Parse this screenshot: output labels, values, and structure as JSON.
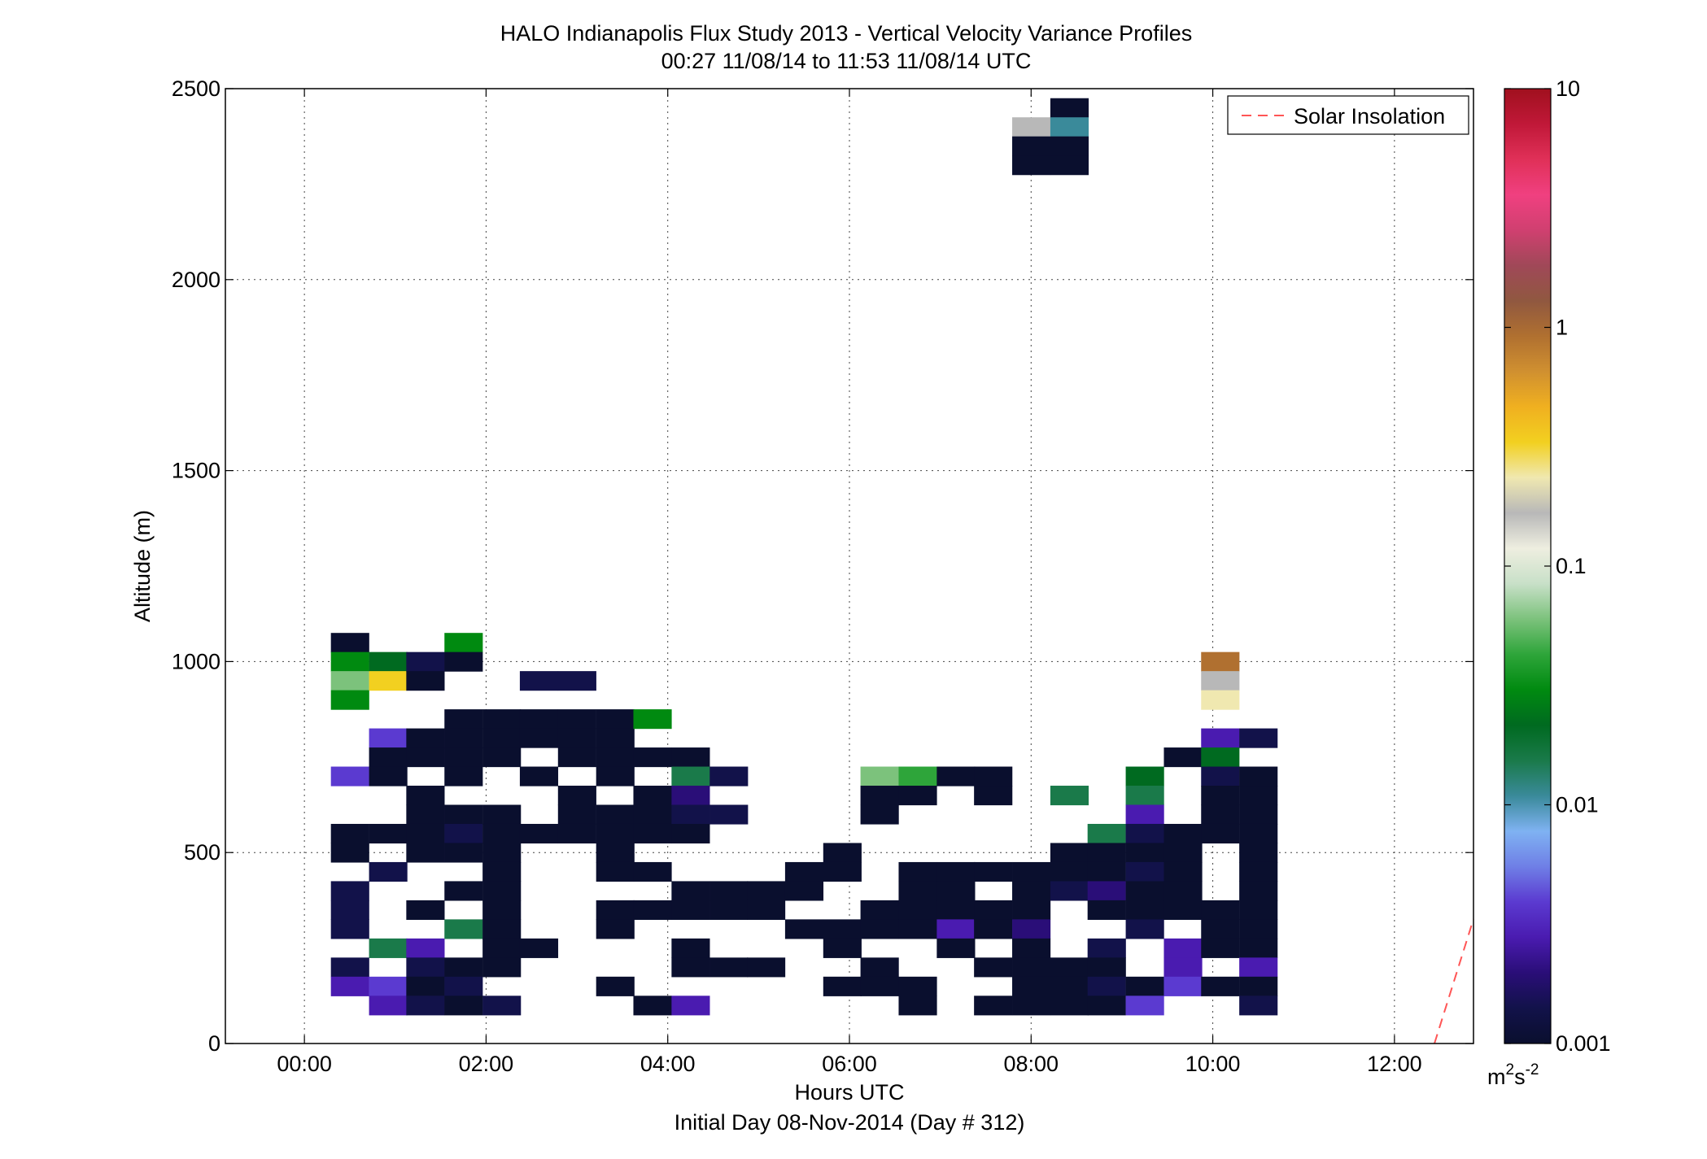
{
  "chart_data": {
    "type": "heatmap",
    "title": "HALO Indianapolis Flux Study 2013 - Vertical Velocity Variance Profiles",
    "subtitle": "00:27 11/08/14 to 11:53 11/08/14  UTC",
    "xlabel": "Hours UTC",
    "xlabel2": "Initial Day 08-Nov-2014 (Day # 312)",
    "ylabel": "Altitude (m)",
    "xlim": [
      -0.87,
      12.87
    ],
    "ylim": [
      0,
      2500
    ],
    "x_ticks": [
      0,
      2,
      4,
      6,
      8,
      10,
      12
    ],
    "x_tick_labels": [
      "00:00",
      "02:00",
      "04:00",
      "06:00",
      "08:00",
      "10:00",
      "12:00"
    ],
    "y_ticks": [
      0,
      500,
      1000,
      1500,
      2000,
      2500
    ],
    "y_tick_labels": [
      "0",
      "500",
      "1000",
      "1500",
      "2000",
      "2500"
    ],
    "grid": true,
    "legend": {
      "position": "top-right",
      "entries": [
        {
          "label": "Solar Insolation",
          "color": "#ff5555",
          "style": "dashed"
        }
      ]
    },
    "colorbar": {
      "scale": "log",
      "range": [
        0.001,
        10
      ],
      "ticks": [
        0.001,
        0.01,
        0.1,
        1,
        10
      ],
      "tick_labels": [
        "0.001",
        "0.01",
        "0.1",
        "1",
        "10"
      ],
      "unit_base": "m",
      "unit_exp1": "2",
      "unit_mid": "s",
      "unit_exp2": "-2",
      "colormap_stops": [
        "#0a0f2e",
        "#12124a",
        "#2a0e78",
        "#4a1bb0",
        "#5b3ad0",
        "#6f7fe6",
        "#7fb2f2",
        "#3a8a9a",
        "#1a7a4a",
        "#006a20",
        "#008a10",
        "#2ea53a",
        "#7cc27c",
        "#c8e0c8",
        "#eeeee0",
        "#b8b8b8",
        "#f0e8b0",
        "#f2d020",
        "#f0b020",
        "#d09030",
        "#b07030",
        "#905840",
        "#a04858",
        "#d04070",
        "#f04080",
        "#e03058",
        "#c01838",
        "#a0101e"
      ]
    },
    "bin_width_hours": 0.4167,
    "bin_height_m": 50,
    "cells": [
      {
        "t": 0.5,
        "alt": 1050,
        "v": 0.001
      },
      {
        "t": 0.5,
        "alt": 1000,
        "v": 0.03
      },
      {
        "t": 0.5,
        "alt": 950,
        "v": 0.06
      },
      {
        "t": 0.5,
        "alt": 900,
        "v": 0.03
      },
      {
        "t": 0.5,
        "alt": 700,
        "v": 0.004
      },
      {
        "t": 0.5,
        "alt": 550,
        "v": 0.001
      },
      {
        "t": 0.5,
        "alt": 500,
        "v": 0.001
      },
      {
        "t": 0.5,
        "alt": 400,
        "v": 0.0015
      },
      {
        "t": 0.5,
        "alt": 350,
        "v": 0.0015
      },
      {
        "t": 0.5,
        "alt": 300,
        "v": 0.0015
      },
      {
        "t": 0.5,
        "alt": 200,
        "v": 0.0012
      },
      {
        "t": 0.5,
        "alt": 150,
        "v": 0.0025
      },
      {
        "t": 0.92,
        "alt": 1000,
        "v": 0.025
      },
      {
        "t": 0.92,
        "alt": 950,
        "v": 0.3
      },
      {
        "t": 0.92,
        "alt": 800,
        "v": 0.004
      },
      {
        "t": 0.92,
        "alt": 750,
        "v": 0.001
      },
      {
        "t": 0.92,
        "alt": 700,
        "v": 0.001
      },
      {
        "t": 0.92,
        "alt": 550,
        "v": 0.001
      },
      {
        "t": 0.92,
        "alt": 450,
        "v": 0.0012
      },
      {
        "t": 0.92,
        "alt": 250,
        "v": 0.015
      },
      {
        "t": 0.92,
        "alt": 150,
        "v": 0.004
      },
      {
        "t": 0.92,
        "alt": 100,
        "v": 0.003
      },
      {
        "t": 1.33,
        "alt": 1000,
        "v": 0.0012
      },
      {
        "t": 1.33,
        "alt": 950,
        "v": 0.001
      },
      {
        "t": 1.33,
        "alt": 800,
        "v": 0.001
      },
      {
        "t": 1.33,
        "alt": 750,
        "v": 0.001
      },
      {
        "t": 1.33,
        "alt": 650,
        "v": 0.001
      },
      {
        "t": 1.33,
        "alt": 600,
        "v": 0.001
      },
      {
        "t": 1.33,
        "alt": 550,
        "v": 0.001
      },
      {
        "t": 1.33,
        "alt": 500,
        "v": 0.001
      },
      {
        "t": 1.33,
        "alt": 350,
        "v": 0.001
      },
      {
        "t": 1.33,
        "alt": 250,
        "v": 0.003
      },
      {
        "t": 1.33,
        "alt": 200,
        "v": 0.0012
      },
      {
        "t": 1.33,
        "alt": 150,
        "v": 0.001
      },
      {
        "t": 1.33,
        "alt": 100,
        "v": 0.0012
      },
      {
        "t": 1.75,
        "alt": 1050,
        "v": 0.03
      },
      {
        "t": 1.75,
        "alt": 1000,
        "v": 0.001
      },
      {
        "t": 1.75,
        "alt": 850,
        "v": 0.001
      },
      {
        "t": 1.75,
        "alt": 800,
        "v": 0.001
      },
      {
        "t": 1.75,
        "alt": 750,
        "v": 0.001
      },
      {
        "t": 1.75,
        "alt": 700,
        "v": 0.001
      },
      {
        "t": 1.75,
        "alt": 600,
        "v": 0.001
      },
      {
        "t": 1.75,
        "alt": 550,
        "v": 0.0015
      },
      {
        "t": 1.75,
        "alt": 500,
        "v": 0.001
      },
      {
        "t": 1.75,
        "alt": 400,
        "v": 0.001
      },
      {
        "t": 1.75,
        "alt": 300,
        "v": 0.015
      },
      {
        "t": 1.75,
        "alt": 200,
        "v": 0.001
      },
      {
        "t": 1.75,
        "alt": 150,
        "v": 0.0012
      },
      {
        "t": 1.75,
        "alt": 100,
        "v": 0.001
      },
      {
        "t": 2.17,
        "alt": 850,
        "v": 0.001
      },
      {
        "t": 2.17,
        "alt": 800,
        "v": 0.001
      },
      {
        "t": 2.17,
        "alt": 750,
        "v": 0.001
      },
      {
        "t": 2.17,
        "alt": 600,
        "v": 0.001
      },
      {
        "t": 2.17,
        "alt": 550,
        "v": 0.001
      },
      {
        "t": 2.17,
        "alt": 500,
        "v": 0.001
      },
      {
        "t": 2.17,
        "alt": 450,
        "v": 0.001
      },
      {
        "t": 2.17,
        "alt": 400,
        "v": 0.001
      },
      {
        "t": 2.17,
        "alt": 350,
        "v": 0.001
      },
      {
        "t": 2.17,
        "alt": 300,
        "v": 0.001
      },
      {
        "t": 2.17,
        "alt": 250,
        "v": 0.001
      },
      {
        "t": 2.17,
        "alt": 200,
        "v": 0.001
      },
      {
        "t": 2.17,
        "alt": 100,
        "v": 0.0012
      },
      {
        "t": 2.58,
        "alt": 950,
        "v": 0.0012
      },
      {
        "t": 2.58,
        "alt": 850,
        "v": 0.001
      },
      {
        "t": 2.58,
        "alt": 800,
        "v": 0.001
      },
      {
        "t": 2.58,
        "alt": 700,
        "v": 0.001
      },
      {
        "t": 2.58,
        "alt": 550,
        "v": 0.001
      },
      {
        "t": 2.58,
        "alt": 250,
        "v": 0.001
      },
      {
        "t": 3.0,
        "alt": 950,
        "v": 0.0012
      },
      {
        "t": 3.0,
        "alt": 850,
        "v": 0.001
      },
      {
        "t": 3.0,
        "alt": 800,
        "v": 0.001
      },
      {
        "t": 3.0,
        "alt": 750,
        "v": 0.001
      },
      {
        "t": 3.0,
        "alt": 650,
        "v": 0.001
      },
      {
        "t": 3.0,
        "alt": 600,
        "v": 0.001
      },
      {
        "t": 3.0,
        "alt": 550,
        "v": 0.001
      },
      {
        "t": 3.42,
        "alt": 850,
        "v": 0.001
      },
      {
        "t": 3.42,
        "alt": 800,
        "v": 0.001
      },
      {
        "t": 3.42,
        "alt": 750,
        "v": 0.001
      },
      {
        "t": 3.42,
        "alt": 700,
        "v": 0.001
      },
      {
        "t": 3.42,
        "alt": 600,
        "v": 0.001
      },
      {
        "t": 3.42,
        "alt": 550,
        "v": 0.001
      },
      {
        "t": 3.42,
        "alt": 500,
        "v": 0.001
      },
      {
        "t": 3.42,
        "alt": 450,
        "v": 0.001
      },
      {
        "t": 3.42,
        "alt": 350,
        "v": 0.001
      },
      {
        "t": 3.42,
        "alt": 300,
        "v": 0.001
      },
      {
        "t": 3.42,
        "alt": 150,
        "v": 0.001
      },
      {
        "t": 3.83,
        "alt": 850,
        "v": 0.03
      },
      {
        "t": 3.83,
        "alt": 750,
        "v": 0.001
      },
      {
        "t": 3.83,
        "alt": 650,
        "v": 0.001
      },
      {
        "t": 3.83,
        "alt": 600,
        "v": 0.001
      },
      {
        "t": 3.83,
        "alt": 550,
        "v": 0.001
      },
      {
        "t": 3.83,
        "alt": 450,
        "v": 0.001
      },
      {
        "t": 3.83,
        "alt": 350,
        "v": 0.001
      },
      {
        "t": 3.83,
        "alt": 100,
        "v": 0.001
      },
      {
        "t": 4.25,
        "alt": 750,
        "v": 0.001
      },
      {
        "t": 4.25,
        "alt": 700,
        "v": 0.015
      },
      {
        "t": 4.25,
        "alt": 650,
        "v": 0.002
      },
      {
        "t": 4.25,
        "alt": 600,
        "v": 0.0012
      },
      {
        "t": 4.25,
        "alt": 550,
        "v": 0.001
      },
      {
        "t": 4.25,
        "alt": 400,
        "v": 0.001
      },
      {
        "t": 4.25,
        "alt": 350,
        "v": 0.001
      },
      {
        "t": 4.25,
        "alt": 250,
        "v": 0.001
      },
      {
        "t": 4.25,
        "alt": 200,
        "v": 0.001
      },
      {
        "t": 4.25,
        "alt": 100,
        "v": 0.0025
      },
      {
        "t": 4.67,
        "alt": 700,
        "v": 0.0015
      },
      {
        "t": 4.67,
        "alt": 600,
        "v": 0.0015
      },
      {
        "t": 4.67,
        "alt": 400,
        "v": 0.001
      },
      {
        "t": 4.67,
        "alt": 350,
        "v": 0.001
      },
      {
        "t": 4.67,
        "alt": 200,
        "v": 0.001
      },
      {
        "t": 5.08,
        "alt": 400,
        "v": 0.001
      },
      {
        "t": 5.08,
        "alt": 350,
        "v": 0.001
      },
      {
        "t": 5.08,
        "alt": 200,
        "v": 0.001
      },
      {
        "t": 5.5,
        "alt": 450,
        "v": 0.001
      },
      {
        "t": 5.5,
        "alt": 400,
        "v": 0.001
      },
      {
        "t": 5.5,
        "alt": 300,
        "v": 0.001
      },
      {
        "t": 5.92,
        "alt": 500,
        "v": 0.001
      },
      {
        "t": 5.92,
        "alt": 450,
        "v": 0.001
      },
      {
        "t": 5.92,
        "alt": 300,
        "v": 0.001
      },
      {
        "t": 5.92,
        "alt": 250,
        "v": 0.001
      },
      {
        "t": 5.92,
        "alt": 150,
        "v": 0.001
      },
      {
        "t": 6.33,
        "alt": 700,
        "v": 0.06
      },
      {
        "t": 6.33,
        "alt": 650,
        "v": 0.001
      },
      {
        "t": 6.33,
        "alt": 600,
        "v": 0.001
      },
      {
        "t": 6.33,
        "alt": 350,
        "v": 0.001
      },
      {
        "t": 6.33,
        "alt": 300,
        "v": 0.001
      },
      {
        "t": 6.33,
        "alt": 200,
        "v": 0.001
      },
      {
        "t": 6.33,
        "alt": 150,
        "v": 0.001
      },
      {
        "t": 6.75,
        "alt": 700,
        "v": 0.05
      },
      {
        "t": 6.75,
        "alt": 650,
        "v": 0.001
      },
      {
        "t": 6.75,
        "alt": 450,
        "v": 0.001
      },
      {
        "t": 6.75,
        "alt": 400,
        "v": 0.001
      },
      {
        "t": 6.75,
        "alt": 350,
        "v": 0.001
      },
      {
        "t": 6.75,
        "alt": 300,
        "v": 0.001
      },
      {
        "t": 6.75,
        "alt": 150,
        "v": 0.001
      },
      {
        "t": 6.75,
        "alt": 100,
        "v": 0.001
      },
      {
        "t": 7.17,
        "alt": 700,
        "v": 0.001
      },
      {
        "t": 7.17,
        "alt": 450,
        "v": 0.001
      },
      {
        "t": 7.17,
        "alt": 400,
        "v": 0.001
      },
      {
        "t": 7.17,
        "alt": 350,
        "v": 0.001
      },
      {
        "t": 7.17,
        "alt": 300,
        "v": 0.003
      },
      {
        "t": 7.17,
        "alt": 250,
        "v": 0.001
      },
      {
        "t": 7.58,
        "alt": 700,
        "v": 0.001
      },
      {
        "t": 7.58,
        "alt": 650,
        "v": 0.001
      },
      {
        "t": 7.58,
        "alt": 450,
        "v": 0.001
      },
      {
        "t": 7.58,
        "alt": 350,
        "v": 0.001
      },
      {
        "t": 7.58,
        "alt": 300,
        "v": 0.001
      },
      {
        "t": 7.58,
        "alt": 200,
        "v": 0.001
      },
      {
        "t": 7.58,
        "alt": 100,
        "v": 0.001
      },
      {
        "t": 8.0,
        "alt": 2400,
        "v": 0.15
      },
      {
        "t": 8.0,
        "alt": 2350,
        "v": 0.001
      },
      {
        "t": 8.0,
        "alt": 2300,
        "v": 0.001
      },
      {
        "t": 8.0,
        "alt": 450,
        "v": 0.001
      },
      {
        "t": 8.0,
        "alt": 400,
        "v": 0.001
      },
      {
        "t": 8.0,
        "alt": 350,
        "v": 0.001
      },
      {
        "t": 8.0,
        "alt": 300,
        "v": 0.002
      },
      {
        "t": 8.0,
        "alt": 250,
        "v": 0.001
      },
      {
        "t": 8.0,
        "alt": 200,
        "v": 0.001
      },
      {
        "t": 8.0,
        "alt": 150,
        "v": 0.001
      },
      {
        "t": 8.0,
        "alt": 100,
        "v": 0.001
      },
      {
        "t": 8.42,
        "alt": 2450,
        "v": 0.001
      },
      {
        "t": 8.42,
        "alt": 2400,
        "v": 0.01
      },
      {
        "t": 8.42,
        "alt": 2350,
        "v": 0.001
      },
      {
        "t": 8.42,
        "alt": 2300,
        "v": 0.001
      },
      {
        "t": 8.42,
        "alt": 650,
        "v": 0.015
      },
      {
        "t": 8.42,
        "alt": 500,
        "v": 0.001
      },
      {
        "t": 8.42,
        "alt": 450,
        "v": 0.001
      },
      {
        "t": 8.42,
        "alt": 400,
        "v": 0.0012
      },
      {
        "t": 8.42,
        "alt": 200,
        "v": 0.001
      },
      {
        "t": 8.42,
        "alt": 150,
        "v": 0.001
      },
      {
        "t": 8.42,
        "alt": 100,
        "v": 0.001
      },
      {
        "t": 8.83,
        "alt": 550,
        "v": 0.015
      },
      {
        "t": 8.83,
        "alt": 500,
        "v": 0.001
      },
      {
        "t": 8.83,
        "alt": 450,
        "v": 0.001
      },
      {
        "t": 8.83,
        "alt": 400,
        "v": 0.002
      },
      {
        "t": 8.83,
        "alt": 350,
        "v": 0.001
      },
      {
        "t": 8.83,
        "alt": 250,
        "v": 0.0012
      },
      {
        "t": 8.83,
        "alt": 200,
        "v": 0.001
      },
      {
        "t": 8.83,
        "alt": 150,
        "v": 0.0015
      },
      {
        "t": 8.83,
        "alt": 100,
        "v": 0.001
      },
      {
        "t": 9.25,
        "alt": 700,
        "v": 0.025
      },
      {
        "t": 9.25,
        "alt": 650,
        "v": 0.015
      },
      {
        "t": 9.25,
        "alt": 600,
        "v": 0.003
      },
      {
        "t": 9.25,
        "alt": 550,
        "v": 0.0012
      },
      {
        "t": 9.25,
        "alt": 500,
        "v": 0.001
      },
      {
        "t": 9.25,
        "alt": 450,
        "v": 0.0012
      },
      {
        "t": 9.25,
        "alt": 400,
        "v": 0.001
      },
      {
        "t": 9.25,
        "alt": 350,
        "v": 0.001
      },
      {
        "t": 9.25,
        "alt": 300,
        "v": 0.0015
      },
      {
        "t": 9.25,
        "alt": 150,
        "v": 0.001
      },
      {
        "t": 9.25,
        "alt": 100,
        "v": 0.004
      },
      {
        "t": 9.67,
        "alt": 750,
        "v": 0.001
      },
      {
        "t": 9.67,
        "alt": 550,
        "v": 0.001
      },
      {
        "t": 9.67,
        "alt": 500,
        "v": 0.001
      },
      {
        "t": 9.67,
        "alt": 450,
        "v": 0.001
      },
      {
        "t": 9.67,
        "alt": 400,
        "v": 0.001
      },
      {
        "t": 9.67,
        "alt": 350,
        "v": 0.001
      },
      {
        "t": 9.67,
        "alt": 250,
        "v": 0.0025
      },
      {
        "t": 9.67,
        "alt": 200,
        "v": 0.0025
      },
      {
        "t": 9.67,
        "alt": 150,
        "v": 0.004
      },
      {
        "t": 10.08,
        "alt": 1000,
        "v": 0.9
      },
      {
        "t": 10.08,
        "alt": 950,
        "v": 0.15
      },
      {
        "t": 10.08,
        "alt": 900,
        "v": 0.2
      },
      {
        "t": 10.08,
        "alt": 800,
        "v": 0.003
      },
      {
        "t": 10.08,
        "alt": 750,
        "v": 0.02
      },
      {
        "t": 10.08,
        "alt": 700,
        "v": 0.0012
      },
      {
        "t": 10.08,
        "alt": 650,
        "v": 0.001
      },
      {
        "t": 10.08,
        "alt": 600,
        "v": 0.001
      },
      {
        "t": 10.08,
        "alt": 550,
        "v": 0.001
      },
      {
        "t": 10.08,
        "alt": 350,
        "v": 0.001
      },
      {
        "t": 10.08,
        "alt": 300,
        "v": 0.001
      },
      {
        "t": 10.08,
        "alt": 250,
        "v": 0.001
      },
      {
        "t": 10.08,
        "alt": 150,
        "v": 0.001
      },
      {
        "t": 10.5,
        "alt": 800,
        "v": 0.0012
      },
      {
        "t": 10.5,
        "alt": 700,
        "v": 0.001
      },
      {
        "t": 10.5,
        "alt": 650,
        "v": 0.001
      },
      {
        "t": 10.5,
        "alt": 600,
        "v": 0.001
      },
      {
        "t": 10.5,
        "alt": 550,
        "v": 0.001
      },
      {
        "t": 10.5,
        "alt": 500,
        "v": 0.001
      },
      {
        "t": 10.5,
        "alt": 450,
        "v": 0.001
      },
      {
        "t": 10.5,
        "alt": 400,
        "v": 0.001
      },
      {
        "t": 10.5,
        "alt": 350,
        "v": 0.001
      },
      {
        "t": 10.5,
        "alt": 300,
        "v": 0.001
      },
      {
        "t": 10.5,
        "alt": 250,
        "v": 0.001
      },
      {
        "t": 10.5,
        "alt": 200,
        "v": 0.003
      },
      {
        "t": 10.5,
        "alt": 150,
        "v": 0.001
      },
      {
        "t": 10.5,
        "alt": 100,
        "v": 0.0012
      }
    ]
  },
  "colorbar_labels": [
    "10",
    "1",
    "0.1",
    "0.01",
    "0.001"
  ]
}
